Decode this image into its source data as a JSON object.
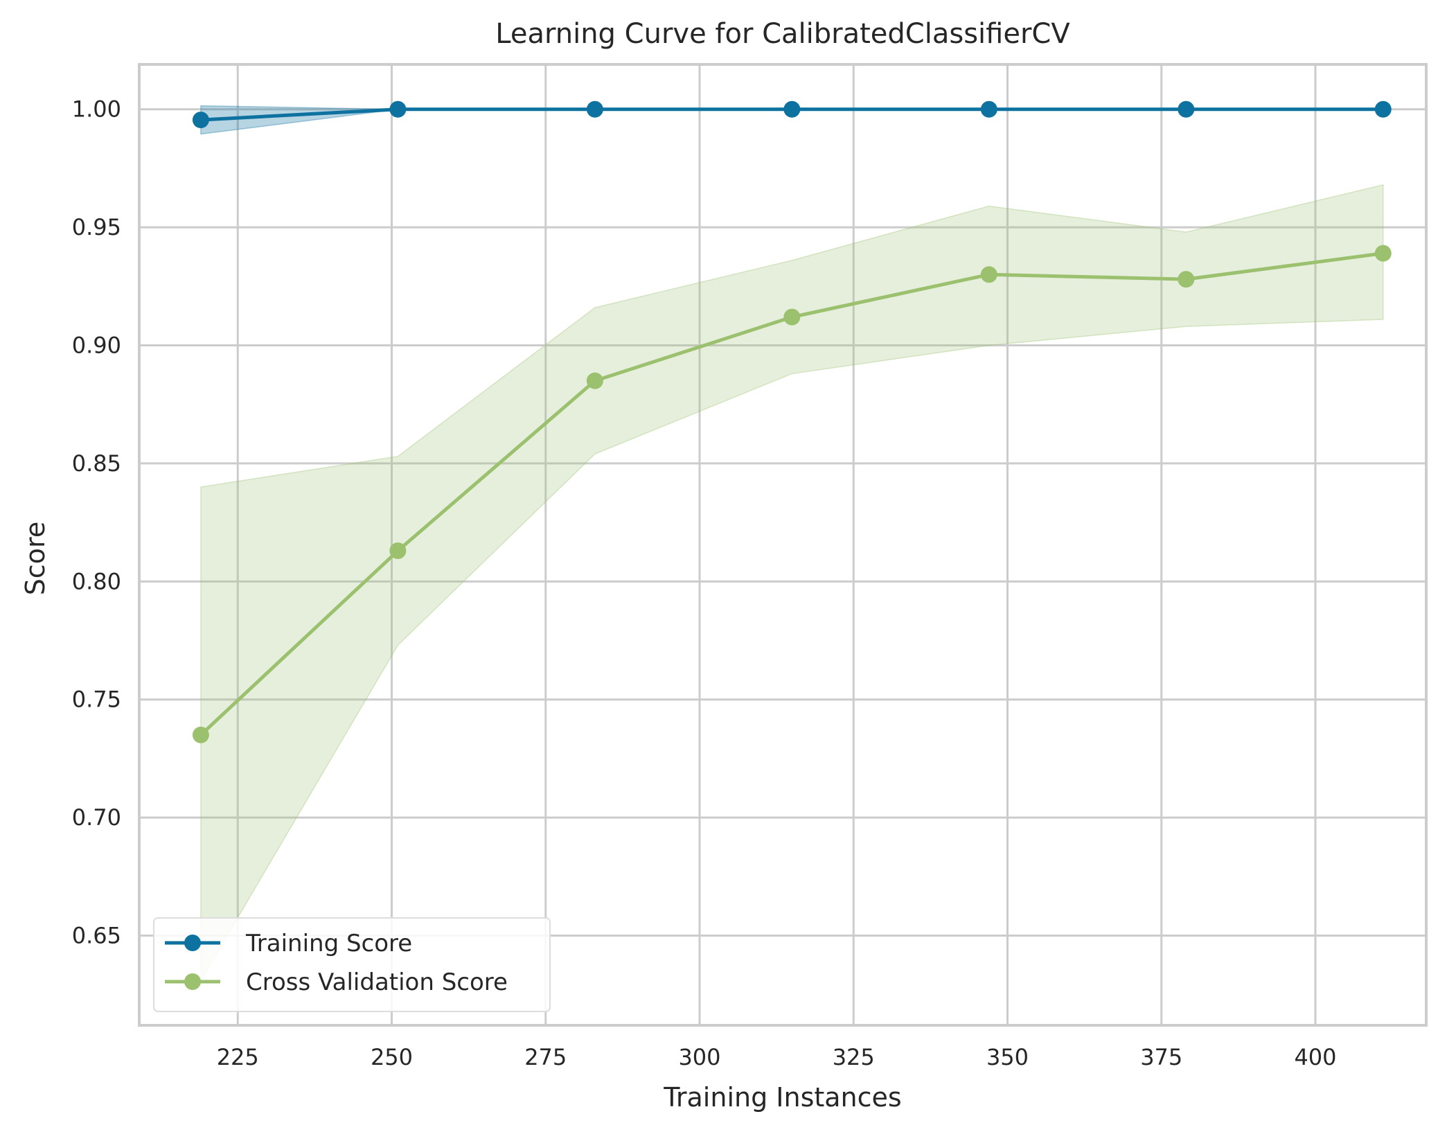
{
  "chart_data": {
    "type": "line",
    "title": "Learning Curve for CalibratedClassifierCV",
    "xlabel": "Training Instances",
    "ylabel": "Score",
    "xlim": [
      209,
      418
    ],
    "ylim": [
      0.612,
      1.019
    ],
    "grid": true,
    "legend_position": "lower-left",
    "x_ticks": [
      225,
      250,
      275,
      300,
      325,
      350,
      375,
      400
    ],
    "y_ticks": [
      0.65,
      0.7,
      0.75,
      0.8,
      0.85,
      0.9,
      0.95,
      1.0
    ],
    "x_tick_labels": [
      "225",
      "250",
      "275",
      "300",
      "325",
      "350",
      "375",
      "400"
    ],
    "y_tick_labels": [
      "0.65",
      "0.70",
      "0.75",
      "0.80",
      "0.85",
      "0.90",
      "0.95",
      "1.00"
    ],
    "x": [
      219,
      251,
      283,
      315,
      347,
      379,
      411
    ],
    "series": [
      {
        "name": "Training Score",
        "color": "#0e72a0",
        "values": [
          0.9955,
          1.0,
          1.0,
          1.0,
          1.0,
          1.0,
          1.0
        ],
        "lower": [
          0.9895,
          1.0,
          1.0,
          1.0,
          1.0,
          1.0,
          1.0
        ],
        "upper": [
          1.0015,
          1.0,
          1.0,
          1.0,
          1.0,
          1.0,
          1.0
        ]
      },
      {
        "name": "Cross Validation Score",
        "color": "#9bc16f",
        "values": [
          0.735,
          0.813,
          0.885,
          0.912,
          0.93,
          0.928,
          0.939
        ],
        "lower": [
          0.631,
          0.773,
          0.854,
          0.888,
          0.9,
          0.908,
          0.911
        ],
        "upper": [
          0.84,
          0.853,
          0.916,
          0.936,
          0.959,
          0.948,
          0.968
        ]
      }
    ]
  }
}
